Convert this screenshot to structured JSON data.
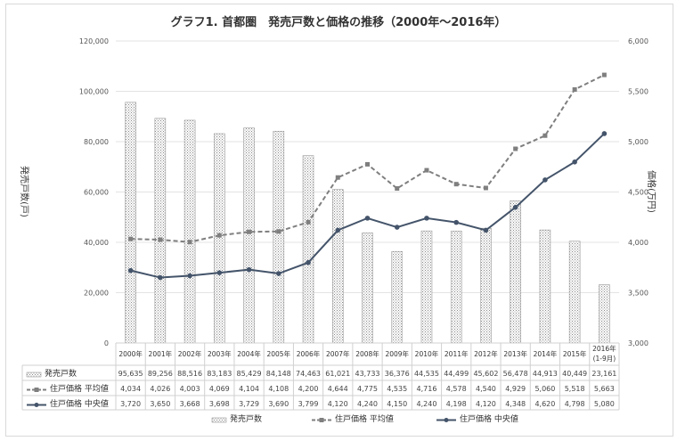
{
  "chart_data": {
    "type": "bar+line",
    "title": "グラフ1. 首都圏　発売戸数と価格の推移（2000年～2016年）",
    "ylabel": "発売戸数(戸)",
    "y2label": "価格(万円)",
    "ylim": [
      0,
      120000
    ],
    "y2lim": [
      3000,
      6000
    ],
    "yticks": [
      "0",
      "20,000",
      "40,000",
      "60,000",
      "80,000",
      "100,000",
      "120,000"
    ],
    "y2ticks": [
      "3,000",
      "3,500",
      "4,000",
      "4,500",
      "5,000",
      "5,500",
      "6,000"
    ],
    "categories": [
      "2000年",
      "2001年",
      "2002年",
      "2003年",
      "2004年",
      "2005年",
      "2006年",
      "2007年",
      "2008年",
      "2009年",
      "2010年",
      "2011年",
      "2012年",
      "2013年",
      "2014年",
      "2015年",
      "2016年\n(1-9月)"
    ],
    "series": [
      {
        "name": "発売戸数",
        "type": "bar",
        "axis": "left",
        "values": [
          95635,
          89256,
          88516,
          83183,
          85429,
          84148,
          74463,
          61021,
          43733,
          36376,
          44535,
          44499,
          45602,
          56478,
          44913,
          40449,
          23161
        ],
        "labels": [
          "95,635",
          "89,256",
          "88,516",
          "83,183",
          "85,429",
          "84,148",
          "74,463",
          "61,021",
          "43,733",
          "36,376",
          "44,535",
          "44,499",
          "45,602",
          "56,478",
          "44,913",
          "40,449",
          "23,161"
        ]
      },
      {
        "name": "住戸価格 平均値",
        "type": "line",
        "axis": "right",
        "color": "#7f7f7f",
        "values": [
          4034,
          4026,
          4003,
          4069,
          4104,
          4108,
          4200,
          4644,
          4775,
          4535,
          4716,
          4578,
          4540,
          4929,
          5060,
          5518,
          5663
        ],
        "labels": [
          "4,034",
          "4,026",
          "4,003",
          "4,069",
          "4,104",
          "4,108",
          "4,200",
          "4,644",
          "4,775",
          "4,535",
          "4,716",
          "4,578",
          "4,540",
          "4,929",
          "5,060",
          "5,518",
          "5,663"
        ]
      },
      {
        "name": "住戸価格 中央値",
        "type": "line",
        "axis": "right",
        "color": "#44546a",
        "values": [
          3720,
          3650,
          3668,
          3698,
          3729,
          3690,
          3799,
          4120,
          4240,
          4150,
          4240,
          4198,
          4120,
          4348,
          4620,
          4798,
          5080
        ],
        "labels": [
          "3,720",
          "3,650",
          "3,668",
          "3,698",
          "3,729",
          "3,690",
          "3,799",
          "4,120",
          "4,240",
          "4,150",
          "4,240",
          "4,198",
          "4,120",
          "4,348",
          "4,620",
          "4,798",
          "5,080"
        ]
      }
    ],
    "grid": true,
    "legend": "bottom"
  }
}
